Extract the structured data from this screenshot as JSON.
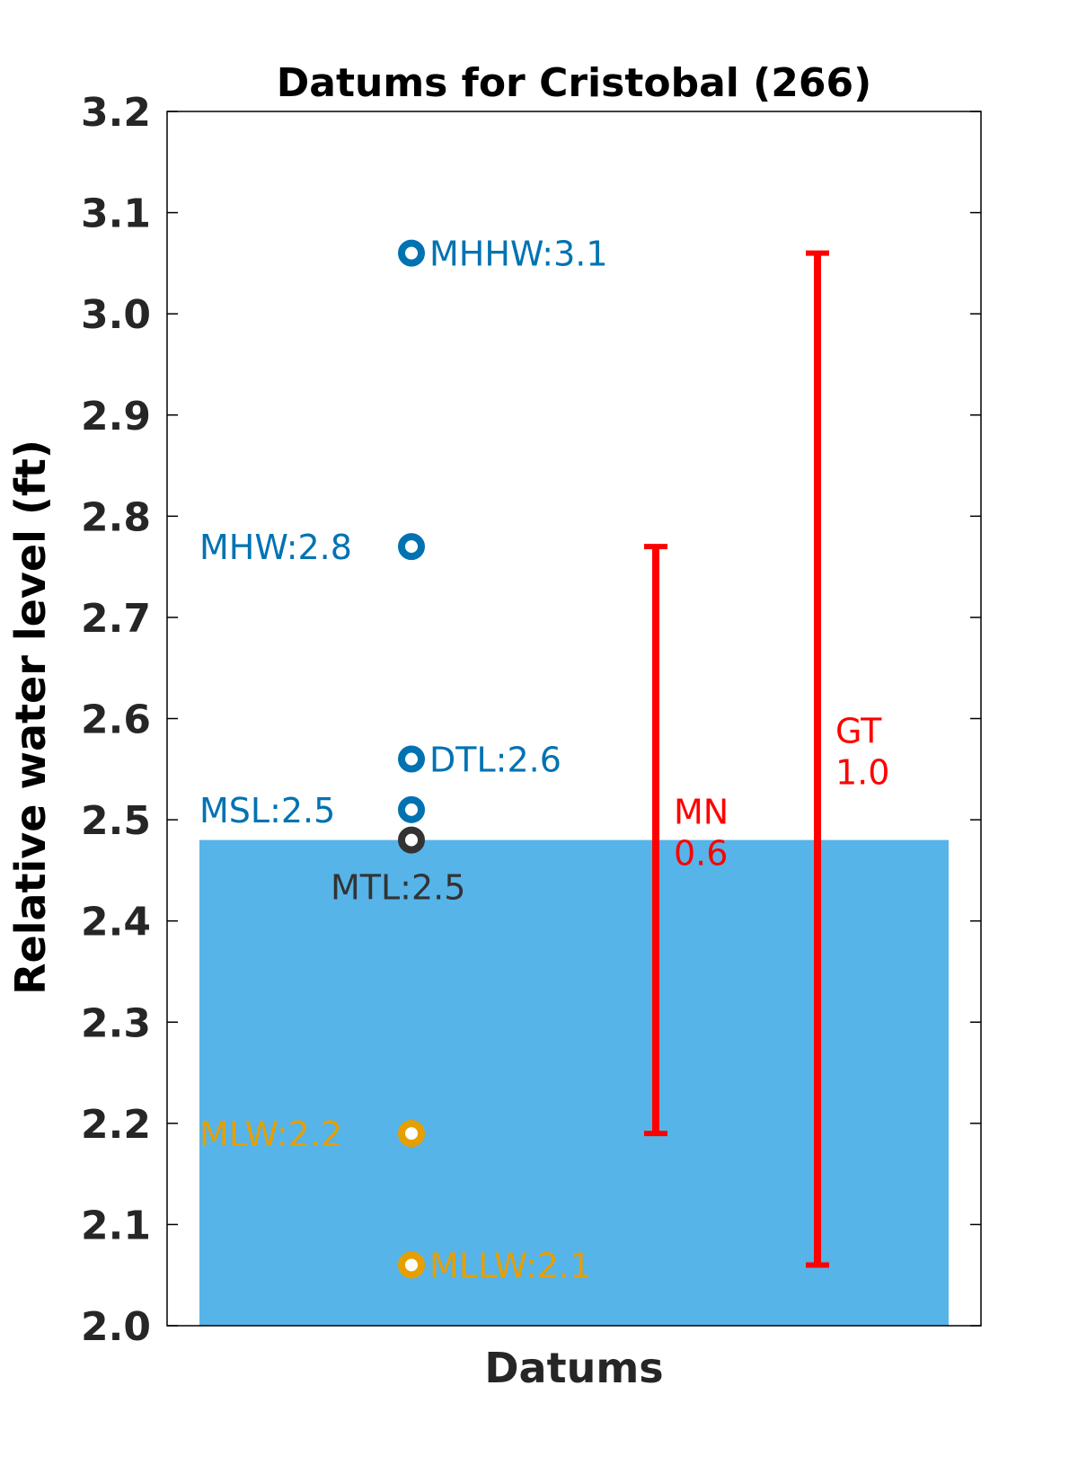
{
  "chart_data": {
    "type": "scatter",
    "title": "Datums for Cristobal (266)",
    "xlabel": "Datums",
    "ylabel": "Relative water level (ft)",
    "ylim": [
      2.0,
      3.2
    ],
    "yticks": [
      "2.0",
      "2.1",
      "2.2",
      "2.3",
      "2.4",
      "2.5",
      "2.6",
      "2.7",
      "2.8",
      "2.9",
      "3.0",
      "3.1",
      "3.2"
    ],
    "grid": false,
    "water_level_fill": {
      "value": 2.48,
      "color": "#56b4e9"
    },
    "datums": [
      {
        "name": "MHHW",
        "value": 3.06,
        "label": "MHHW:3.1",
        "color": "#0072b2",
        "label_side": "right"
      },
      {
        "name": "MHW",
        "value": 2.77,
        "label": "MHW:2.8",
        "color": "#0072b2",
        "label_side": "left"
      },
      {
        "name": "DTL",
        "value": 2.56,
        "label": "DTL:2.6",
        "color": "#0072b2",
        "label_side": "right"
      },
      {
        "name": "MSL",
        "value": 2.51,
        "label": "MSL:2.5",
        "color": "#0072b2",
        "label_side": "left"
      },
      {
        "name": "MTL",
        "value": 2.48,
        "label": "MTL:2.5",
        "color": "#333333",
        "label_side": "below"
      },
      {
        "name": "MLW",
        "value": 2.19,
        "label": "MLW:2.2",
        "color": "#e69f00",
        "label_side": "left"
      },
      {
        "name": "MLLW",
        "value": 2.06,
        "label": "MLLW:2.1",
        "color": "#e69f00",
        "label_side": "right"
      }
    ],
    "ranges": [
      {
        "name": "MN",
        "low": 2.19,
        "high": 2.77,
        "label": "MN",
        "value_label": "0.6",
        "color": "#ff0000"
      },
      {
        "name": "GT",
        "low": 2.06,
        "high": 3.06,
        "label": "GT",
        "value_label": "1.0",
        "color": "#ff0000"
      }
    ]
  }
}
